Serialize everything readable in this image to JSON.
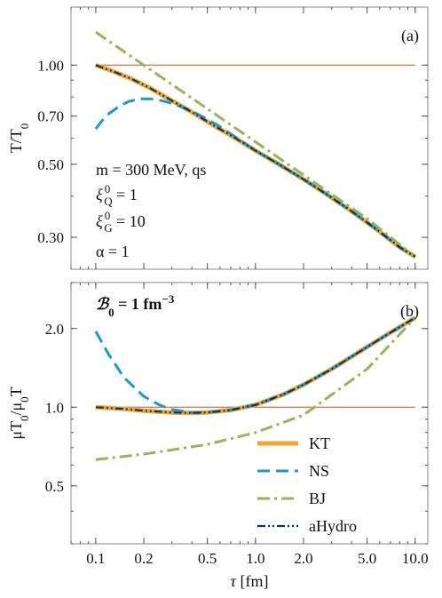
{
  "chart_data": [
    {
      "type": "line",
      "panel_label": "(a)",
      "ylabel": "T/T",
      "ylabel_sub": "0",
      "xscale": "log",
      "yscale": "log",
      "xlim": [
        0.07,
        12
      ],
      "ylim": [
        0.24,
        1.5
      ],
      "xticks": [
        "0.1",
        "0.2",
        "0.5",
        "1.0",
        "2.0",
        "5.0",
        "10.0"
      ],
      "yticks": [
        "0.30",
        "0.50",
        "0.70",
        "1.00"
      ],
      "annotations": {
        "line1": "m = 300 MeV, qs",
        "xiQ": {
          "sym": "ξ",
          "sup": "0",
          "sub": "Q",
          "val": " = 1"
        },
        "xiG": {
          "sym": "ξ",
          "sup": "0",
          "sub": "G",
          "val": " = 10"
        },
        "alpha": "α = 1"
      },
      "reference_line": {
        "y": 1.0,
        "color": "#e07a5f"
      },
      "series": [
        {
          "name": "KT",
          "color": "#f0a830",
          "x": [
            0.1,
            0.13,
            0.17,
            0.22,
            0.3,
            0.4,
            0.55,
            0.75,
            1.0,
            1.4,
            2.0,
            2.8,
            4.0,
            5.6,
            8.0,
            10.0
          ],
          "y": [
            1.0,
            0.955,
            0.905,
            0.85,
            0.78,
            0.72,
            0.655,
            0.6,
            0.55,
            0.5,
            0.45,
            0.405,
            0.36,
            0.32,
            0.28,
            0.262
          ]
        },
        {
          "name": "NS",
          "color": "#1a9bc7",
          "x": [
            0.1,
            0.11,
            0.12,
            0.14,
            0.16,
            0.19,
            0.22,
            0.26,
            0.3,
            0.35,
            0.4,
            0.5,
            0.6,
            0.75,
            1.0,
            1.4,
            2.0,
            2.8,
            4.0,
            5.6,
            8.0,
            10.0
          ],
          "y": [
            0.64,
            0.68,
            0.71,
            0.75,
            0.775,
            0.79,
            0.79,
            0.78,
            0.765,
            0.745,
            0.725,
            0.685,
            0.65,
            0.605,
            0.55,
            0.5,
            0.45,
            0.405,
            0.36,
            0.32,
            0.28,
            0.262
          ]
        },
        {
          "name": "BJ",
          "color": "#9ab35a",
          "x": [
            0.1,
            0.2,
            0.5,
            1.0,
            2.0,
            5.0,
            10.0
          ],
          "y": [
            1.26,
            1.0,
            0.737,
            0.585,
            0.464,
            0.342,
            0.262
          ]
        },
        {
          "name": "aHydro",
          "color": "#16324f",
          "x": [
            0.1,
            0.13,
            0.17,
            0.22,
            0.3,
            0.4,
            0.55,
            0.75,
            1.0,
            1.4,
            2.0,
            2.8,
            4.0,
            5.6,
            8.0,
            10.0
          ],
          "y": [
            1.0,
            0.955,
            0.905,
            0.85,
            0.78,
            0.72,
            0.655,
            0.6,
            0.55,
            0.5,
            0.45,
            0.405,
            0.36,
            0.32,
            0.28,
            0.262
          ]
        }
      ]
    },
    {
      "type": "line",
      "panel_label": "(b)",
      "ylabel": "μT",
      "ylabel_mid": "/μ",
      "ylabel_end": "T",
      "ylabel_sub": "0",
      "xlabel": "τ [fm]",
      "xscale": "log",
      "yscale": "log",
      "xlim": [
        0.07,
        12
      ],
      "ylim": [
        0.3,
        3.0
      ],
      "xticks": [
        "0.1",
        "0.2",
        "0.5",
        "1.0",
        "2.0",
        "5.0",
        "10.0"
      ],
      "yticks": [
        "0.5",
        "1.0",
        "2.0"
      ],
      "annotation": {
        "sym": "ℬ",
        "sub": "0",
        "rest": " = 1 fm",
        "sup": "−3"
      },
      "reference_line": {
        "y": 1.0,
        "color": "#e07a5f"
      },
      "legend_position": "bottom-right",
      "series": [
        {
          "name": "KT",
          "color": "#f0a830",
          "x": [
            0.1,
            0.15,
            0.2,
            0.3,
            0.4,
            0.5,
            0.7,
            1.0,
            1.5,
            2.0,
            3.0,
            5.0,
            7.0,
            10.0
          ],
          "y": [
            1.0,
            0.985,
            0.97,
            0.955,
            0.95,
            0.955,
            0.975,
            1.02,
            1.12,
            1.22,
            1.4,
            1.7,
            1.93,
            2.2
          ]
        },
        {
          "name": "NS",
          "color": "#1a9bc7",
          "x": [
            0.1,
            0.12,
            0.15,
            0.2,
            0.25,
            0.3,
            0.4,
            0.5,
            0.7,
            1.0,
            1.5,
            2.0,
            3.0,
            5.0,
            7.0,
            10.0
          ],
          "y": [
            1.95,
            1.6,
            1.3,
            1.1,
            1.02,
            0.98,
            0.955,
            0.955,
            0.975,
            1.02,
            1.12,
            1.22,
            1.4,
            1.7,
            1.93,
            2.2
          ]
        },
        {
          "name": "BJ",
          "color": "#9ab35a",
          "x": [
            0.1,
            0.2,
            0.5,
            1.0,
            2.0,
            5.0,
            10.0
          ],
          "y": [
            0.63,
            0.661,
            0.72,
            0.8,
            0.933,
            1.4,
            2.2
          ]
        },
        {
          "name": "aHydro",
          "color": "#16324f",
          "x": [
            0.1,
            0.15,
            0.2,
            0.3,
            0.4,
            0.5,
            0.7,
            1.0,
            1.5,
            2.0,
            3.0,
            5.0,
            7.0,
            10.0
          ],
          "y": [
            1.0,
            0.985,
            0.97,
            0.955,
            0.95,
            0.955,
            0.975,
            1.02,
            1.12,
            1.22,
            1.4,
            1.7,
            1.93,
            2.2
          ]
        }
      ],
      "legend": [
        "KT",
        "NS",
        "BJ",
        "aHydro"
      ]
    }
  ]
}
